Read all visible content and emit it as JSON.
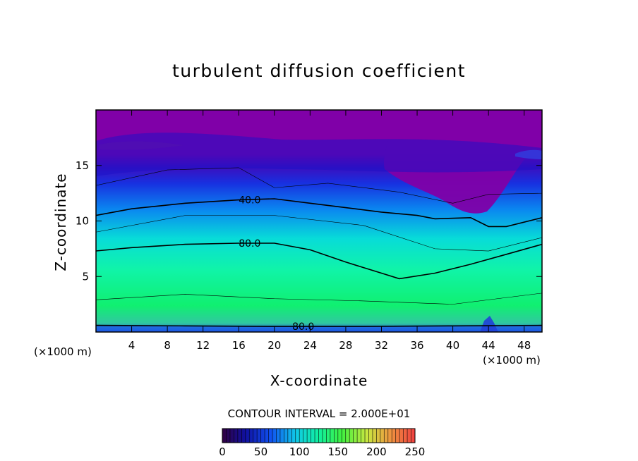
{
  "chart_data": {
    "type": "heatmap",
    "title": "turbulent diffusion coefficient",
    "xlabel": "X-coordinate",
    "ylabel": "Z-coordinate",
    "x_unit": "(×1000 m)",
    "x_ticks": [
      "4",
      "8",
      "12",
      "16",
      "20",
      "24",
      "28",
      "32",
      "36",
      "40",
      "44",
      "48"
    ],
    "y_ticks": [
      "5",
      "10",
      "15"
    ],
    "xlim": [
      0,
      50
    ],
    "ylim": [
      0,
      20
    ],
    "contour_labels": [
      "40.0",
      "80.0",
      "80.0"
    ],
    "contour_interval_text": "CONTOUR INTERVAL = 2.000E+01",
    "colorbar": {
      "range": [
        0,
        250
      ],
      "ticks": [
        "0",
        "50",
        "100",
        "150",
        "200",
        "250"
      ]
    },
    "contours": [
      {
        "level": 40,
        "label": "40.0",
        "points": [
          [
            0,
            10.5
          ],
          [
            4,
            11.1
          ],
          [
            10,
            11.6
          ],
          [
            16,
            11.9
          ],
          [
            20,
            12.0
          ],
          [
            24,
            11.6
          ],
          [
            28,
            11.2
          ],
          [
            32,
            10.8
          ],
          [
            36,
            10.5
          ],
          [
            38,
            10.2
          ],
          [
            42,
            10.3
          ],
          [
            44,
            9.5
          ],
          [
            46,
            9.5
          ],
          [
            50,
            10.3
          ]
        ]
      },
      {
        "level": 80,
        "label": "80.0",
        "points": [
          [
            0,
            7.3
          ],
          [
            4,
            7.6
          ],
          [
            10,
            7.9
          ],
          [
            16,
            8.0
          ],
          [
            20,
            8.0
          ],
          [
            24,
            7.4
          ],
          [
            28,
            6.3
          ],
          [
            32,
            5.3
          ],
          [
            34,
            4.8
          ],
          [
            38,
            5.3
          ],
          [
            42,
            6.1
          ],
          [
            46,
            7.0
          ],
          [
            50,
            7.9
          ]
        ]
      },
      {
        "level": 80,
        "label": "80.0",
        "points": [
          [
            0,
            0.6
          ],
          [
            10,
            0.55
          ],
          [
            20,
            0.5
          ],
          [
            30,
            0.5
          ],
          [
            40,
            0.55
          ],
          [
            50,
            0.6
          ]
        ]
      }
    ]
  }
}
